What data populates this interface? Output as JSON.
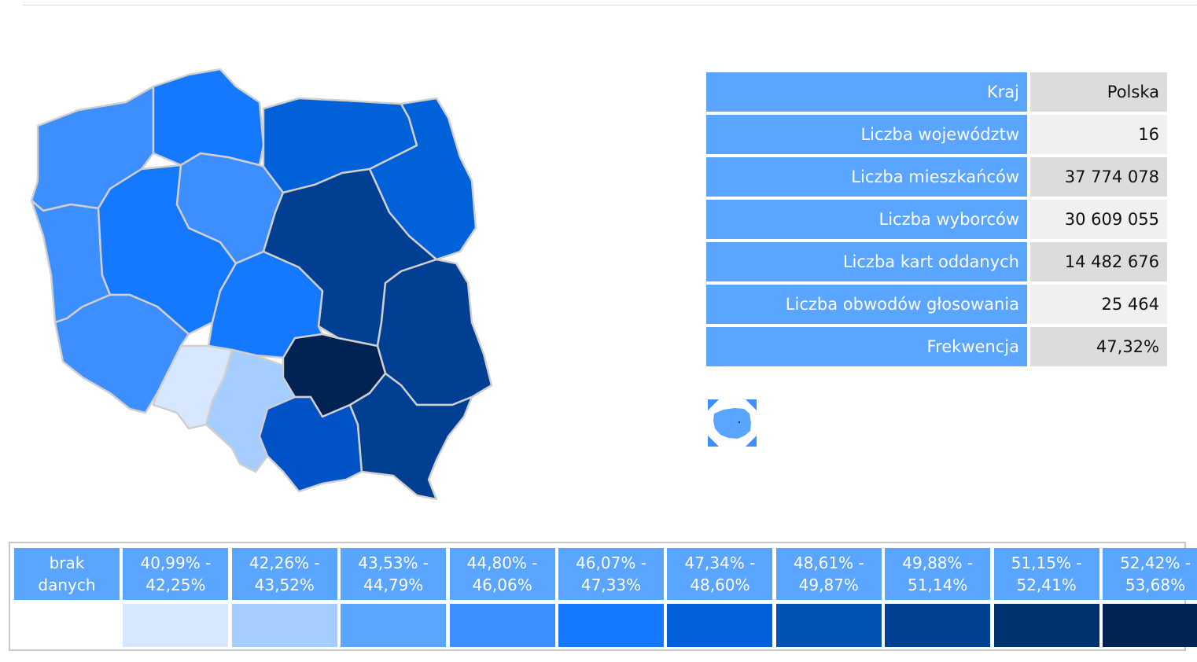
{
  "map": {
    "regions": [
      {
        "name": "zachodniopomorskie",
        "color": "#3d8eff"
      },
      {
        "name": "pomorskie",
        "color": "#1479ff"
      },
      {
        "name": "warmińsko-mazurskie",
        "color": "#0061d8"
      },
      {
        "name": "podlaskie",
        "color": "#0061d8"
      },
      {
        "name": "lubuskie",
        "color": "#3d8eff"
      },
      {
        "name": "wielkopolskie",
        "color": "#1479ff"
      },
      {
        "name": "kujawsko-pomorskie",
        "color": "#3d8eff"
      },
      {
        "name": "mazowieckie",
        "color": "#003f92"
      },
      {
        "name": "łódzkie",
        "color": "#1479ff"
      },
      {
        "name": "lubelskie",
        "color": "#003f92"
      },
      {
        "name": "dolnośląskie",
        "color": "#3d8eff"
      },
      {
        "name": "opolskie",
        "color": "#d6e7ff"
      },
      {
        "name": "śląskie",
        "color": "#a6cdff"
      },
      {
        "name": "świętokrzyskie",
        "color": "#002353"
      },
      {
        "name": "małopolskie",
        "color": "#0052c6"
      },
      {
        "name": "podkarpackie",
        "color": "#003f92"
      }
    ]
  },
  "stats": [
    {
      "label": "Kraj",
      "value": "Polska"
    },
    {
      "label": "Liczba województw",
      "value": "16"
    },
    {
      "label": "Liczba mieszkańców",
      "value": "37 774 078"
    },
    {
      "label": "Liczba wyborców",
      "value": "30 609 055"
    },
    {
      "label": "Liczba kart oddanych",
      "value": "14 482 676"
    },
    {
      "label": "Liczba obwodów głosowania",
      "value": "25 464"
    },
    {
      "label": "Frekwencja",
      "value": "47,32%"
    }
  ],
  "minimap": {
    "color": "#5aa5ff",
    "accent": "#3d8eff"
  },
  "legend": [
    {
      "line1": "brak",
      "line2": "danych",
      "color": "#ffffff"
    },
    {
      "line1": "40,99% -",
      "line2": "42,25%",
      "color": "#d6e7ff"
    },
    {
      "line1": "42,26% -",
      "line2": "43,52%",
      "color": "#a6cdff"
    },
    {
      "line1": "43,53% -",
      "line2": "44,79%",
      "color": "#5aa5ff"
    },
    {
      "line1": "44,80% -",
      "line2": "46,06%",
      "color": "#3d8eff"
    },
    {
      "line1": "46,07% -",
      "line2": "47,33%",
      "color": "#1479ff"
    },
    {
      "line1": "47,34% -",
      "line2": "48,60%",
      "color": "#0061d8"
    },
    {
      "line1": "48,61% -",
      "line2": "49,87%",
      "color": "#0052b3"
    },
    {
      "line1": "49,88% -",
      "line2": "51,14%",
      "color": "#003f92"
    },
    {
      "line1": "51,15% -",
      "line2": "52,41%",
      "color": "#003270"
    },
    {
      "line1": "52,42% -",
      "line2": "53,68%",
      "color": "#002353"
    }
  ]
}
